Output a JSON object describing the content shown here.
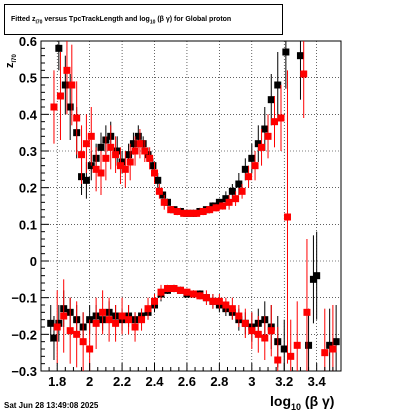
{
  "title": {
    "prefix": "Fitted  z",
    "sub1": "I70",
    "middle": "  versus TpcTrackLength and log",
    "sub2": "10",
    "suffix": "(β  γ) for Global proton"
  },
  "datestamp": "Sat Jun 28 13:49:08 2025",
  "xaxis_title": {
    "main": "log",
    "sub": "10",
    "tail": "(β γ)"
  },
  "yaxis_title": {
    "main": "z",
    "sub": "I70"
  },
  "colors": {
    "series_black": "#000000",
    "series_red": "#ff0000",
    "grid": "#000000"
  },
  "chart_data": {
    "type": "scatter",
    "xlim": [
      1.7,
      3.55
    ],
    "ylim": [
      -0.3,
      0.6
    ],
    "grid": true,
    "x_ticks": [
      1.8,
      2.0,
      2.2,
      2.4,
      2.6,
      2.8,
      3.0,
      3.2,
      3.4
    ],
    "x_tick_labels": [
      "1.8",
      "2",
      "2.2",
      "2.4",
      "2.6",
      "2.8",
      "3",
      "3.2",
      "3.4"
    ],
    "y_ticks": [
      -0.3,
      -0.2,
      -0.1,
      0,
      0.1,
      0.2,
      0.3,
      0.4,
      0.5,
      0.6
    ],
    "y_tick_labels": [
      "−0.3",
      "−0.2",
      "−0.1",
      "0",
      "0.1",
      "0.2",
      "0.3",
      "0.4",
      "0.5",
      "0.6"
    ],
    "series": [
      {
        "color": "black",
        "points": [
          {
            "x": 1.81,
            "y": 0.58,
            "e": 0.06
          },
          {
            "x": 1.85,
            "y": 0.48,
            "e": 0.08
          },
          {
            "x": 1.88,
            "y": 0.42,
            "e": 0.09
          },
          {
            "x": 1.92,
            "y": 0.35,
            "e": 0.07
          },
          {
            "x": 1.95,
            "y": 0.23,
            "e": 0.05
          },
          {
            "x": 1.98,
            "y": 0.22,
            "e": 0.05
          },
          {
            "x": 2.01,
            "y": 0.26,
            "e": 0.04
          },
          {
            "x": 2.04,
            "y": 0.28,
            "e": 0.04
          },
          {
            "x": 2.07,
            "y": 0.31,
            "e": 0.04
          },
          {
            "x": 2.1,
            "y": 0.33,
            "e": 0.04
          },
          {
            "x": 2.13,
            "y": 0.34,
            "e": 0.04
          },
          {
            "x": 2.17,
            "y": 0.3,
            "e": 0.04
          },
          {
            "x": 2.2,
            "y": 0.27,
            "e": 0.03
          },
          {
            "x": 2.24,
            "y": 0.29,
            "e": 0.03
          },
          {
            "x": 2.27,
            "y": 0.32,
            "e": 0.03
          },
          {
            "x": 2.3,
            "y": 0.34,
            "e": 0.03
          },
          {
            "x": 2.33,
            "y": 0.32,
            "e": 0.02
          },
          {
            "x": 2.36,
            "y": 0.29,
            "e": 0.02
          },
          {
            "x": 2.39,
            "y": 0.26,
            "e": 0.02
          },
          {
            "x": 2.42,
            "y": 0.22,
            "e": 0.02
          },
          {
            "x": 2.45,
            "y": 0.18,
            "e": 0.01
          },
          {
            "x": 2.48,
            "y": 0.16,
            "e": 0.01
          },
          {
            "x": 2.52,
            "y": 0.14,
            "e": 0.01
          },
          {
            "x": 2.56,
            "y": 0.135,
            "e": 0.01
          },
          {
            "x": 2.6,
            "y": 0.13,
            "e": 0.01
          },
          {
            "x": 2.64,
            "y": 0.13,
            "e": 0.01
          },
          {
            "x": 2.68,
            "y": 0.135,
            "e": 0.01
          },
          {
            "x": 2.72,
            "y": 0.14,
            "e": 0.01
          },
          {
            "x": 2.76,
            "y": 0.15,
            "e": 0.01
          },
          {
            "x": 2.8,
            "y": 0.16,
            "e": 0.01
          },
          {
            "x": 2.84,
            "y": 0.17,
            "e": 0.02
          },
          {
            "x": 2.88,
            "y": 0.19,
            "e": 0.02
          },
          {
            "x": 2.92,
            "y": 0.21,
            "e": 0.03
          },
          {
            "x": 2.96,
            "y": 0.25,
            "e": 0.03
          },
          {
            "x": 3.0,
            "y": 0.28,
            "e": 0.04
          },
          {
            "x": 3.04,
            "y": 0.32,
            "e": 0.05
          },
          {
            "x": 3.08,
            "y": 0.36,
            "e": 0.06
          },
          {
            "x": 3.12,
            "y": 0.44,
            "e": 0.07
          },
          {
            "x": 3.16,
            "y": 0.48,
            "e": 0.09
          },
          {
            "x": 3.21,
            "y": 0.57,
            "e": 0.1
          },
          {
            "x": 3.3,
            "y": 0.56,
            "e": 0.12
          },
          {
            "x": 1.76,
            "y": -0.17,
            "e": 0.05
          },
          {
            "x": 1.78,
            "y": -0.21,
            "e": 0.06
          },
          {
            "x": 1.81,
            "y": -0.17,
            "e": 0.05
          },
          {
            "x": 1.84,
            "y": -0.13,
            "e": 0.05
          },
          {
            "x": 1.88,
            "y": -0.14,
            "e": 0.04
          },
          {
            "x": 1.92,
            "y": -0.16,
            "e": 0.04
          },
          {
            "x": 1.96,
            "y": -0.18,
            "e": 0.04
          },
          {
            "x": 2.0,
            "y": -0.16,
            "e": 0.04
          },
          {
            "x": 2.04,
            "y": -0.15,
            "e": 0.03
          },
          {
            "x": 2.08,
            "y": -0.16,
            "e": 0.03
          },
          {
            "x": 2.12,
            "y": -0.14,
            "e": 0.03
          },
          {
            "x": 2.16,
            "y": -0.15,
            "e": 0.03
          },
          {
            "x": 2.2,
            "y": -0.16,
            "e": 0.03
          },
          {
            "x": 2.24,
            "y": -0.15,
            "e": 0.03
          },
          {
            "x": 2.28,
            "y": -0.16,
            "e": 0.02
          },
          {
            "x": 2.32,
            "y": -0.15,
            "e": 0.02
          },
          {
            "x": 2.36,
            "y": -0.14,
            "e": 0.02
          },
          {
            "x": 2.4,
            "y": -0.12,
            "e": 0.02
          },
          {
            "x": 2.44,
            "y": -0.09,
            "e": 0.02
          },
          {
            "x": 2.48,
            "y": -0.08,
            "e": 0.01
          },
          {
            "x": 2.52,
            "y": -0.075,
            "e": 0.01
          },
          {
            "x": 2.56,
            "y": -0.08,
            "e": 0.01
          },
          {
            "x": 2.6,
            "y": -0.09,
            "e": 0.01
          },
          {
            "x": 2.64,
            "y": -0.09,
            "e": 0.01
          },
          {
            "x": 2.68,
            "y": -0.09,
            "e": 0.01
          },
          {
            "x": 2.72,
            "y": -0.1,
            "e": 0.01
          },
          {
            "x": 2.76,
            "y": -0.11,
            "e": 0.02
          },
          {
            "x": 2.8,
            "y": -0.12,
            "e": 0.02
          },
          {
            "x": 2.84,
            "y": -0.13,
            "e": 0.02
          },
          {
            "x": 2.88,
            "y": -0.14,
            "e": 0.02
          },
          {
            "x": 2.92,
            "y": -0.16,
            "e": 0.03
          },
          {
            "x": 2.96,
            "y": -0.17,
            "e": 0.03
          },
          {
            "x": 3.0,
            "y": -0.18,
            "e": 0.04
          },
          {
            "x": 3.04,
            "y": -0.17,
            "e": 0.04
          },
          {
            "x": 3.08,
            "y": -0.16,
            "e": 0.05
          },
          {
            "x": 3.12,
            "y": -0.18,
            "e": 0.06
          },
          {
            "x": 3.16,
            "y": -0.22,
            "e": 0.07
          },
          {
            "x": 3.2,
            "y": -0.24,
            "e": 0.08
          },
          {
            "x": 3.35,
            "y": -0.23,
            "e": 0.1
          },
          {
            "x": 3.38,
            "y": -0.05,
            "e": 0.12
          },
          {
            "x": 3.4,
            "y": -0.04,
            "e": 0.12
          },
          {
            "x": 3.48,
            "y": -0.23,
            "e": 0.1
          },
          {
            "x": 3.52,
            "y": -0.22,
            "e": 0.1
          }
        ]
      },
      {
        "color": "red",
        "points": [
          {
            "x": 1.78,
            "y": 0.42,
            "e": 0.1
          },
          {
            "x": 1.82,
            "y": 0.45,
            "e": 0.12
          },
          {
            "x": 1.86,
            "y": 0.52,
            "e": 0.12
          },
          {
            "x": 1.89,
            "y": 0.48,
            "e": 0.11
          },
          {
            "x": 1.92,
            "y": 0.39,
            "e": 0.1
          },
          {
            "x": 1.95,
            "y": 0.29,
            "e": 0.08
          },
          {
            "x": 1.98,
            "y": 0.32,
            "e": 0.08
          },
          {
            "x": 2.01,
            "y": 0.34,
            "e": 0.08
          },
          {
            "x": 2.04,
            "y": 0.25,
            "e": 0.06
          },
          {
            "x": 2.07,
            "y": 0.24,
            "e": 0.06
          },
          {
            "x": 2.1,
            "y": 0.28,
            "e": 0.06
          },
          {
            "x": 2.13,
            "y": 0.31,
            "e": 0.06
          },
          {
            "x": 2.16,
            "y": 0.29,
            "e": 0.05
          },
          {
            "x": 2.19,
            "y": 0.26,
            "e": 0.05
          },
          {
            "x": 2.22,
            "y": 0.25,
            "e": 0.05
          },
          {
            "x": 2.25,
            "y": 0.27,
            "e": 0.05
          },
          {
            "x": 2.28,
            "y": 0.3,
            "e": 0.04
          },
          {
            "x": 2.31,
            "y": 0.32,
            "e": 0.04
          },
          {
            "x": 2.34,
            "y": 0.3,
            "e": 0.03
          },
          {
            "x": 2.37,
            "y": 0.28,
            "e": 0.03
          },
          {
            "x": 2.4,
            "y": 0.24,
            "e": 0.03
          },
          {
            "x": 2.43,
            "y": 0.19,
            "e": 0.02
          },
          {
            "x": 2.46,
            "y": 0.16,
            "e": 0.02
          },
          {
            "x": 2.5,
            "y": 0.14,
            "e": 0.01
          },
          {
            "x": 2.54,
            "y": 0.135,
            "e": 0.01
          },
          {
            "x": 2.58,
            "y": 0.13,
            "e": 0.01
          },
          {
            "x": 2.62,
            "y": 0.13,
            "e": 0.01
          },
          {
            "x": 2.66,
            "y": 0.13,
            "e": 0.01
          },
          {
            "x": 2.7,
            "y": 0.135,
            "e": 0.01
          },
          {
            "x": 2.74,
            "y": 0.14,
            "e": 0.01
          },
          {
            "x": 2.78,
            "y": 0.145,
            "e": 0.01
          },
          {
            "x": 2.82,
            "y": 0.15,
            "e": 0.01
          },
          {
            "x": 2.86,
            "y": 0.16,
            "e": 0.02
          },
          {
            "x": 2.9,
            "y": 0.17,
            "e": 0.02
          },
          {
            "x": 2.94,
            "y": 0.19,
            "e": 0.02
          },
          {
            "x": 2.98,
            "y": 0.23,
            "e": 0.03
          },
          {
            "x": 3.02,
            "y": 0.26,
            "e": 0.04
          },
          {
            "x": 3.06,
            "y": 0.31,
            "e": 0.05
          },
          {
            "x": 3.1,
            "y": 0.34,
            "e": 0.06
          },
          {
            "x": 3.14,
            "y": 0.38,
            "e": 0.07
          },
          {
            "x": 3.18,
            "y": 0.39,
            "e": 0.09
          },
          {
            "x": 3.22,
            "y": 0.12,
            "e": 0.4
          },
          {
            "x": 3.32,
            "y": 0.51,
            "e": 0.12
          },
          {
            "x": 1.8,
            "y": -0.18,
            "e": 0.1
          },
          {
            "x": 1.84,
            "y": -0.15,
            "e": 0.1
          },
          {
            "x": 1.88,
            "y": -0.19,
            "e": 0.09
          },
          {
            "x": 1.92,
            "y": -0.2,
            "e": 0.09
          },
          {
            "x": 1.96,
            "y": -0.22,
            "e": 0.08
          },
          {
            "x": 2.0,
            "y": -0.24,
            "e": 0.08
          },
          {
            "x": 2.04,
            "y": -0.17,
            "e": 0.07
          },
          {
            "x": 2.08,
            "y": -0.14,
            "e": 0.06
          },
          {
            "x": 2.12,
            "y": -0.16,
            "e": 0.06
          },
          {
            "x": 2.16,
            "y": -0.17,
            "e": 0.05
          },
          {
            "x": 2.2,
            "y": -0.15,
            "e": 0.05
          },
          {
            "x": 2.24,
            "y": -0.16,
            "e": 0.04
          },
          {
            "x": 2.28,
            "y": -0.18,
            "e": 0.04
          },
          {
            "x": 2.32,
            "y": -0.16,
            "e": 0.03
          },
          {
            "x": 2.36,
            "y": -0.13,
            "e": 0.03
          },
          {
            "x": 2.4,
            "y": -0.11,
            "e": 0.02
          },
          {
            "x": 2.44,
            "y": -0.085,
            "e": 0.02
          },
          {
            "x": 2.48,
            "y": -0.075,
            "e": 0.01
          },
          {
            "x": 2.52,
            "y": -0.075,
            "e": 0.01
          },
          {
            "x": 2.56,
            "y": -0.08,
            "e": 0.01
          },
          {
            "x": 2.6,
            "y": -0.085,
            "e": 0.01
          },
          {
            "x": 2.64,
            "y": -0.09,
            "e": 0.01
          },
          {
            "x": 2.68,
            "y": -0.095,
            "e": 0.01
          },
          {
            "x": 2.72,
            "y": -0.1,
            "e": 0.02
          },
          {
            "x": 2.76,
            "y": -0.11,
            "e": 0.02
          },
          {
            "x": 2.8,
            "y": -0.11,
            "e": 0.02
          },
          {
            "x": 2.84,
            "y": -0.12,
            "e": 0.02
          },
          {
            "x": 2.88,
            "y": -0.13,
            "e": 0.03
          },
          {
            "x": 2.92,
            "y": -0.15,
            "e": 0.03
          },
          {
            "x": 2.96,
            "y": -0.17,
            "e": 0.04
          },
          {
            "x": 3.0,
            "y": -0.19,
            "e": 0.05
          },
          {
            "x": 3.04,
            "y": -0.2,
            "e": 0.05
          },
          {
            "x": 3.08,
            "y": -0.21,
            "e": 0.06
          },
          {
            "x": 3.12,
            "y": -0.19,
            "e": 0.07
          },
          {
            "x": 3.16,
            "y": -0.27,
            "e": 0.09
          },
          {
            "x": 3.24,
            "y": -0.26,
            "e": 0.1
          },
          {
            "x": 3.28,
            "y": -0.23,
            "e": 0.12
          },
          {
            "x": 3.34,
            "y": -0.14,
            "e": 0.2
          },
          {
            "x": 3.45,
            "y": -0.25,
            "e": 0.12
          },
          {
            "x": 3.5,
            "y": -0.24,
            "e": 0.12
          }
        ]
      }
    ]
  }
}
